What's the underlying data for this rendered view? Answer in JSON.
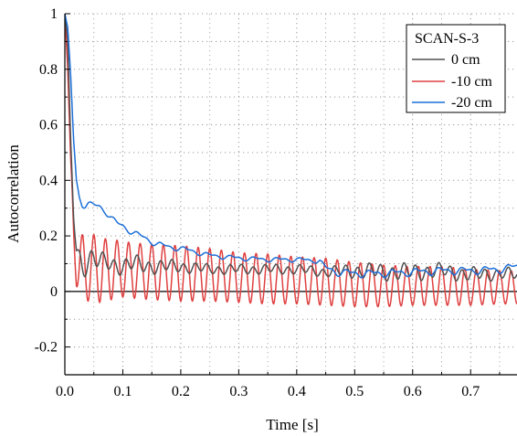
{
  "chart_data": {
    "type": "line",
    "title": "",
    "xlabel": "Time [s]",
    "ylabel": "Autocorrelation",
    "xlim": [
      0,
      0.78
    ],
    "ylim": [
      -0.3,
      1.0
    ],
    "x_ticks": [
      0.0,
      0.1,
      0.2,
      0.3,
      0.4,
      0.5,
      0.6,
      0.7
    ],
    "x_tick_labels": [
      "0.0",
      "0.1",
      "0.2",
      "0.3",
      "0.4",
      "0.5",
      "0.6",
      "0.7"
    ],
    "y_ticks": [
      -0.2,
      0,
      0.2,
      0.4,
      0.6,
      0.8,
      1
    ],
    "y_tick_labels": [
      "-0.2",
      "0",
      "0.2",
      "0.4",
      "0.6",
      "0.8",
      "1"
    ],
    "grid": true,
    "zero_line": true,
    "legend": {
      "title": "SCAN-S-3",
      "position": "top-right"
    },
    "series": [
      {
        "name": "0 cm",
        "color": "#505050",
        "x": [
          0,
          0.005,
          0.01,
          0.015,
          0.02,
          0.025,
          0.03,
          0.04,
          0.05,
          0.06,
          0.07,
          0.08,
          0.1,
          0.12,
          0.15,
          0.2,
          0.25,
          0.3,
          0.35,
          0.4,
          0.45,
          0.5,
          0.55,
          0.6,
          0.65,
          0.7,
          0.75,
          0.78
        ],
        "values": [
          1.0,
          0.9,
          0.55,
          0.28,
          0.15,
          0.12,
          0.1,
          0.11,
          0.12,
          0.1,
          0.11,
          0.1,
          0.09,
          0.1,
          0.09,
          0.09,
          0.08,
          0.08,
          0.08,
          0.08,
          0.07,
          0.075,
          0.07,
          0.07,
          0.075,
          0.06,
          0.065,
          0.06
        ],
        "osc_amplitude": [
          0,
          0,
          0,
          0.02,
          0.04,
          0.05,
          0.055,
          0.05,
          0.045,
          0.04,
          0.035,
          0.035,
          0.035,
          0.035,
          0.03,
          0.025,
          0.02,
          0.02,
          0.02,
          0.02,
          0.02,
          0.03,
          0.035,
          0.035,
          0.03,
          0.03,
          0.025,
          0.025
        ],
        "osc_frequency": 50
      },
      {
        "name": "-10 cm",
        "color": "#e04040",
        "x": [
          0,
          0.005,
          0.01,
          0.015,
          0.02,
          0.025,
          0.03,
          0.04,
          0.05,
          0.06,
          0.07,
          0.08,
          0.1,
          0.12,
          0.15,
          0.2,
          0.25,
          0.3,
          0.35,
          0.4,
          0.45,
          0.5,
          0.55,
          0.6,
          0.65,
          0.7,
          0.75,
          0.78
        ],
        "values": [
          1.0,
          0.8,
          0.45,
          0.22,
          0.12,
          0.09,
          0.085,
          0.085,
          0.085,
          0.08,
          0.08,
          0.08,
          0.08,
          0.075,
          0.07,
          0.065,
          0.06,
          0.05,
          0.045,
          0.04,
          0.035,
          0.025,
          0.02,
          0.02,
          0.02,
          0.015,
          0.015,
          0.015
        ],
        "osc_amplitude": [
          0,
          0,
          0.03,
          0.07,
          0.1,
          0.11,
          0.12,
          0.12,
          0.12,
          0.12,
          0.11,
          0.11,
          0.1,
          0.1,
          0.1,
          0.1,
          0.095,
          0.09,
          0.09,
          0.085,
          0.085,
          0.08,
          0.075,
          0.07,
          0.07,
          0.065,
          0.06,
          0.06
        ],
        "osc_frequency": 50
      },
      {
        "name": "-20 cm",
        "color": "#1c6fd8",
        "x": [
          0,
          0.005,
          0.01,
          0.015,
          0.02,
          0.025,
          0.03,
          0.035,
          0.04,
          0.05,
          0.06,
          0.07,
          0.08,
          0.09,
          0.1,
          0.12,
          0.14,
          0.16,
          0.18,
          0.2,
          0.25,
          0.3,
          0.35,
          0.4,
          0.44,
          0.45,
          0.47,
          0.5,
          0.55,
          0.6,
          0.65,
          0.7,
          0.75,
          0.78
        ],
        "values": [
          1.0,
          0.95,
          0.78,
          0.55,
          0.4,
          0.34,
          0.315,
          0.31,
          0.315,
          0.31,
          0.305,
          0.29,
          0.265,
          0.245,
          0.235,
          0.21,
          0.19,
          0.17,
          0.16,
          0.155,
          0.13,
          0.12,
          0.115,
          0.115,
          0.11,
          0.085,
          0.07,
          0.065,
          0.065,
          0.07,
          0.075,
          0.075,
          0.08,
          0.09
        ],
        "osc_amplitude": [
          0,
          0,
          0,
          0,
          0,
          0.005,
          0.008,
          0.008,
          0.008,
          0.008,
          0.008,
          0.008,
          0.008,
          0.008,
          0.008,
          0.008,
          0.008,
          0.008,
          0.007,
          0.007,
          0.006,
          0.006,
          0.006,
          0.006,
          0.006,
          0.006,
          0.01,
          0.01,
          0.01,
          0.01,
          0.01,
          0.01,
          0.01,
          0.01
        ],
        "osc_frequency": 25
      }
    ]
  }
}
